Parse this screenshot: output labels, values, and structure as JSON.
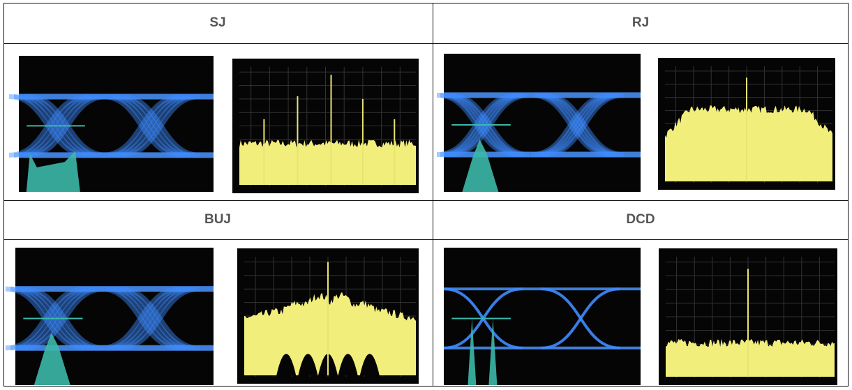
{
  "table": {
    "rows": [
      [
        "SJ",
        "RJ"
      ],
      [
        "BUJ",
        "DCD"
      ]
    ]
  }
}
